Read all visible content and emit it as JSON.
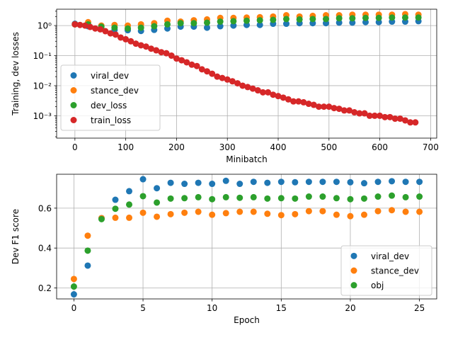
{
  "chart_data": [
    {
      "type": "scatter",
      "xlabel": "Minibatch",
      "ylabel": "Training, dev losses",
      "yscale": "log",
      "xlim": [
        -36,
        712
      ],
      "ylim": [
        0.00018,
        3.5
      ],
      "xticks": [
        0,
        100,
        200,
        300,
        400,
        500,
        600,
        700
      ],
      "xtick_labels": [
        "0",
        "100",
        "200",
        "300",
        "400",
        "500",
        "600",
        "700"
      ],
      "yticks": [
        1,
        0.1,
        0.01,
        0.001
      ],
      "ytick_labels": [
        "10⁰",
        "10⁻¹",
        "10⁻²",
        "10⁻³"
      ],
      "grid": true,
      "legend_position": "lower-left",
      "series": [
        {
          "name": "viral_dev",
          "color": "#1f77b4",
          "x": [
            0,
            26,
            52,
            78,
            104,
            130,
            156,
            182,
            208,
            234,
            260,
            286,
            312,
            338,
            364,
            390,
            416,
            442,
            468,
            494,
            520,
            546,
            572,
            598,
            624,
            650,
            676
          ],
          "values": [
            1.15,
            0.95,
            0.78,
            0.72,
            0.7,
            0.66,
            0.72,
            0.8,
            0.92,
            0.92,
            0.85,
            0.95,
            1.0,
            1.05,
            1.05,
            1.15,
            1.15,
            1.2,
            1.2,
            1.2,
            1.25,
            1.25,
            1.3,
            1.3,
            1.35,
            1.35,
            1.4
          ]
        },
        {
          "name": "stance_dev",
          "color": "#ff7f0e",
          "x": [
            0,
            26,
            52,
            78,
            104,
            130,
            156,
            182,
            208,
            234,
            260,
            286,
            312,
            338,
            364,
            390,
            416,
            442,
            468,
            494,
            520,
            546,
            572,
            598,
            624,
            650,
            676
          ],
          "values": [
            1.1,
            1.3,
            1.0,
            1.05,
            1.0,
            1.1,
            1.2,
            1.45,
            1.35,
            1.5,
            1.6,
            1.8,
            1.8,
            1.85,
            1.9,
            2.0,
            2.2,
            2.0,
            2.1,
            2.2,
            2.2,
            2.3,
            2.3,
            2.3,
            2.3,
            2.4,
            2.3
          ]
        },
        {
          "name": "dev_loss",
          "color": "#2ca02c",
          "x": [
            0,
            26,
            52,
            78,
            104,
            130,
            156,
            182,
            208,
            234,
            260,
            286,
            312,
            338,
            364,
            390,
            416,
            442,
            468,
            494,
            520,
            546,
            572,
            598,
            624,
            650,
            676
          ],
          "values": [
            1.1,
            1.1,
            0.92,
            0.85,
            0.8,
            0.85,
            0.95,
            1.1,
            1.2,
            1.2,
            1.25,
            1.35,
            1.4,
            1.45,
            1.5,
            1.55,
            1.65,
            1.6,
            1.65,
            1.65,
            1.75,
            1.75,
            1.8,
            1.8,
            1.85,
            1.85,
            1.85
          ]
        },
        {
          "name": "train_loss",
          "color": "#d62728",
          "x": [
            0,
            10,
            20,
            30,
            40,
            50,
            60,
            70,
            80,
            90,
            100,
            110,
            120,
            130,
            140,
            150,
            160,
            170,
            180,
            190,
            200,
            210,
            220,
            230,
            240,
            250,
            260,
            270,
            280,
            290,
            300,
            310,
            320,
            330,
            340,
            350,
            360,
            370,
            380,
            390,
            400,
            410,
            420,
            430,
            440,
            450,
            460,
            470,
            480,
            490,
            500,
            510,
            520,
            530,
            540,
            550,
            560,
            570,
            580,
            590,
            600,
            610,
            620,
            630,
            640,
            650,
            660,
            670
          ],
          "values": [
            1.1,
            1.05,
            1.0,
            0.9,
            0.8,
            0.75,
            0.65,
            0.55,
            0.5,
            0.4,
            0.35,
            0.3,
            0.25,
            0.22,
            0.2,
            0.17,
            0.15,
            0.13,
            0.12,
            0.1,
            0.08,
            0.07,
            0.06,
            0.05,
            0.045,
            0.035,
            0.03,
            0.025,
            0.02,
            0.018,
            0.016,
            0.014,
            0.012,
            0.01,
            0.009,
            0.008,
            0.007,
            0.006,
            0.006,
            0.005,
            0.0045,
            0.004,
            0.0035,
            0.003,
            0.003,
            0.0028,
            0.0025,
            0.0023,
            0.002,
            0.002,
            0.002,
            0.0018,
            0.0017,
            0.0015,
            0.0015,
            0.0013,
            0.0012,
            0.0012,
            0.001,
            0.001,
            0.001,
            0.0009,
            0.0009,
            0.0008,
            0.0008,
            0.0007,
            0.0006,
            0.0006
          ]
        }
      ]
    },
    {
      "type": "scatter",
      "xlabel": "Epoch",
      "ylabel": "Dev F1 score",
      "xlim": [
        -1.25,
        26.25
      ],
      "ylim": [
        0.145,
        0.77
      ],
      "xticks": [
        0,
        5,
        10,
        15,
        20,
        25
      ],
      "xtick_labels": [
        "0",
        "5",
        "10",
        "15",
        "20",
        "25"
      ],
      "yticks": [
        0.2,
        0.4,
        0.6
      ],
      "ytick_labels": [
        "0.2",
        "0.4",
        "0.6"
      ],
      "grid": true,
      "legend_position": "lower-right",
      "series": [
        {
          "name": "viral_dev",
          "color": "#1f77b4",
          "x": [
            0,
            1,
            2,
            3,
            4,
            5,
            6,
            7,
            8,
            9,
            10,
            11,
            12,
            13,
            14,
            15,
            16,
            17,
            18,
            19,
            20,
            21,
            22,
            23,
            24,
            25
          ],
          "values": [
            0.168,
            0.312,
            0.55,
            0.642,
            0.685,
            0.745,
            0.7,
            0.727,
            0.722,
            0.727,
            0.722,
            0.737,
            0.722,
            0.732,
            0.727,
            0.732,
            0.73,
            0.732,
            0.732,
            0.732,
            0.73,
            0.725,
            0.732,
            0.735,
            0.732,
            0.732
          ]
        },
        {
          "name": "stance_dev",
          "color": "#ff7f0e",
          "x": [
            0,
            1,
            2,
            3,
            4,
            5,
            6,
            7,
            8,
            9,
            10,
            11,
            12,
            13,
            14,
            15,
            16,
            17,
            18,
            19,
            20,
            21,
            22,
            23,
            24,
            25
          ],
          "values": [
            0.245,
            0.462,
            0.55,
            0.552,
            0.552,
            0.577,
            0.557,
            0.57,
            0.577,
            0.582,
            0.567,
            0.575,
            0.582,
            0.582,
            0.572,
            0.565,
            0.57,
            0.585,
            0.585,
            0.567,
            0.56,
            0.567,
            0.585,
            0.59,
            0.582,
            0.582
          ]
        },
        {
          "name": "obj",
          "color": "#2ca02c",
          "x": [
            0,
            1,
            2,
            3,
            4,
            5,
            6,
            7,
            8,
            9,
            10,
            11,
            12,
            13,
            14,
            15,
            16,
            17,
            18,
            19,
            20,
            21,
            22,
            23,
            24,
            25
          ],
          "values": [
            0.207,
            0.387,
            0.545,
            0.597,
            0.618,
            0.66,
            0.628,
            0.648,
            0.65,
            0.655,
            0.645,
            0.655,
            0.652,
            0.655,
            0.648,
            0.65,
            0.648,
            0.658,
            0.658,
            0.65,
            0.645,
            0.648,
            0.658,
            0.663,
            0.655,
            0.658
          ]
        }
      ]
    }
  ]
}
